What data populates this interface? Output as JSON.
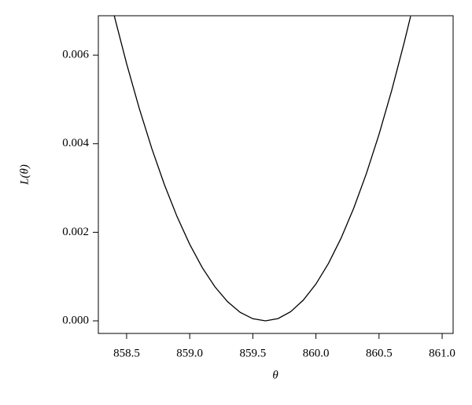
{
  "chart_data": {
    "type": "line",
    "xlabel": "θ",
    "ylabel": "L(θ)",
    "x": [
      858.4,
      858.5,
      858.6,
      858.7,
      858.8,
      858.9,
      859.0,
      859.1,
      859.2,
      859.3,
      859.4,
      859.5,
      859.6,
      859.7,
      859.8,
      859.9,
      860.0,
      860.1,
      860.2,
      860.3,
      860.4,
      860.5,
      860.6,
      860.7,
      860.75
    ],
    "series": [
      {
        "color": "#000000",
        "values": [
          0.006912,
          0.005808,
          0.0048,
          0.003888,
          0.003072,
          0.002352,
          0.001728,
          0.0012,
          0.000768,
          0.000432,
          0.000192,
          4.8e-05,
          0,
          5.2e-05,
          0.000208,
          0.000468,
          0.000832,
          0.0013,
          0.001872,
          0.002548,
          0.003328,
          0.004212,
          0.0052,
          0.006292,
          0.006877
        ]
      }
    ],
    "xlim": [
      858.276,
      861.087
    ],
    "ylim": [
      -0.000284,
      0.00689
    ],
    "xticks": [
      {
        "value": 858.5,
        "label": "858.5"
      },
      {
        "value": 859,
        "label": "859.0"
      },
      {
        "value": 859.5,
        "label": "859.5"
      },
      {
        "value": 860,
        "label": "860.0"
      },
      {
        "value": 860.5,
        "label": "860.5"
      },
      {
        "value": 861,
        "label": "861.0"
      }
    ],
    "yticks": [
      {
        "value": 0,
        "label": "0.000"
      },
      {
        "value": 0.002,
        "label": "0.002"
      },
      {
        "value": 0.004,
        "label": "0.004"
      },
      {
        "value": 0.006,
        "label": "0.006"
      }
    ]
  }
}
